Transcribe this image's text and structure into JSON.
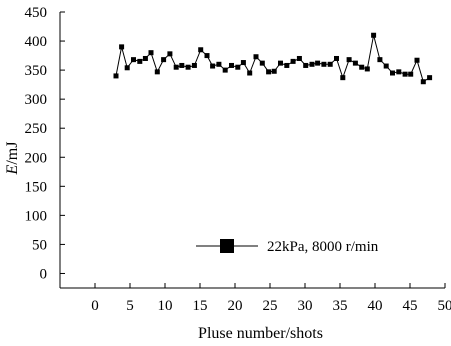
{
  "chart_data": {
    "type": "line",
    "title": "",
    "xlabel": "Pluse number/shots",
    "ylabel_italic": "E",
    "ylabel_unit": "/mJ",
    "xlim": [
      -5,
      50
    ],
    "ylim": [
      -25,
      450
    ],
    "x_ticks": [
      0,
      5,
      10,
      15,
      20,
      25,
      30,
      35,
      40,
      45,
      50
    ],
    "y_ticks": [
      0,
      50,
      100,
      150,
      200,
      250,
      300,
      350,
      400,
      450
    ],
    "grid": false,
    "legend_position": "lower-right",
    "series": [
      {
        "name": "22kPa, 8000 r/min",
        "marker": "square",
        "color": "#000000",
        "points": [
          [
            3,
            340
          ],
          [
            3.8,
            390
          ],
          [
            4.6,
            354
          ],
          [
            5.5,
            368
          ],
          [
            6.4,
            365
          ],
          [
            7.2,
            370
          ],
          [
            8,
            380
          ],
          [
            8.9,
            347
          ],
          [
            9.8,
            368
          ],
          [
            10.7,
            378
          ],
          [
            11.6,
            355
          ],
          [
            12.4,
            358
          ],
          [
            13.3,
            355
          ],
          [
            14.2,
            358
          ],
          [
            15.1,
            385
          ],
          [
            16,
            375
          ],
          [
            16.8,
            357
          ],
          [
            17.7,
            360
          ],
          [
            18.6,
            350
          ],
          [
            19.5,
            358
          ],
          [
            20.4,
            355
          ],
          [
            21.2,
            363
          ],
          [
            22.1,
            345
          ],
          [
            23,
            373
          ],
          [
            23.9,
            362
          ],
          [
            24.8,
            347
          ],
          [
            25.6,
            348
          ],
          [
            26.5,
            362
          ],
          [
            27.4,
            358
          ],
          [
            28.3,
            365
          ],
          [
            29.2,
            370
          ],
          [
            30.1,
            358
          ],
          [
            31,
            360
          ],
          [
            31.8,
            362
          ],
          [
            32.7,
            360
          ],
          [
            33.6,
            360
          ],
          [
            34.5,
            370
          ],
          [
            35.4,
            337
          ],
          [
            36.3,
            368
          ],
          [
            37.2,
            362
          ],
          [
            38.1,
            355
          ],
          [
            38.9,
            352
          ],
          [
            39.8,
            410
          ],
          [
            40.7,
            368
          ],
          [
            41.6,
            357
          ],
          [
            42.5,
            345
          ],
          [
            43.4,
            347
          ],
          [
            44.3,
            343
          ],
          [
            45.1,
            343
          ],
          [
            46,
            367
          ],
          [
            46.9,
            330
          ],
          [
            47.8,
            337
          ]
        ]
      }
    ]
  }
}
